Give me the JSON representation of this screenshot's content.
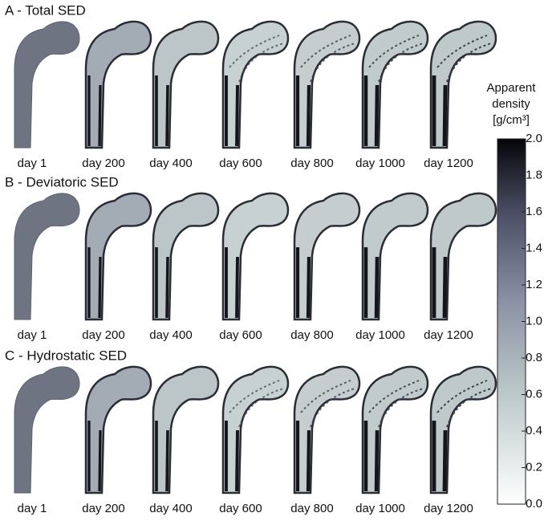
{
  "panels": [
    {
      "title": "A - Total SED",
      "days": [
        "day 1",
        "day 200",
        "day 400",
        "day 600",
        "day 800",
        "day 1000",
        "day 1200"
      ]
    },
    {
      "title": "B - Deviatoric SED",
      "days": [
        "day 1",
        "day 200",
        "day 400",
        "day 600",
        "day 800",
        "day 1000",
        "day 1200"
      ]
    },
    {
      "title": "C - Hydrostatic SED",
      "days": [
        "day 1",
        "day 200",
        "day 400",
        "day 600",
        "day 800",
        "day 1000",
        "day 1200"
      ]
    }
  ],
  "colorbar": {
    "title_lines": [
      "Apparent",
      "density",
      "[g/cm³]"
    ],
    "lim": [
      0,
      2
    ],
    "ticks": [
      {
        "value": 0,
        "label": "0.0"
      },
      {
        "value": 0.2,
        "label": "0.2"
      },
      {
        "value": 0.4,
        "label": "0.4"
      },
      {
        "value": 0.6,
        "label": "0.6"
      },
      {
        "value": 0.8,
        "label": "0.8"
      },
      {
        "value": 1,
        "label": "1.0"
      },
      {
        "value": 1.2,
        "label": "1.2"
      },
      {
        "value": 1.4,
        "label": "1.4"
      },
      {
        "value": 1.6,
        "label": "1.6"
      },
      {
        "value": 1.8,
        "label": "1.8"
      },
      {
        "value": 2,
        "label": "2.0"
      }
    ]
  }
}
